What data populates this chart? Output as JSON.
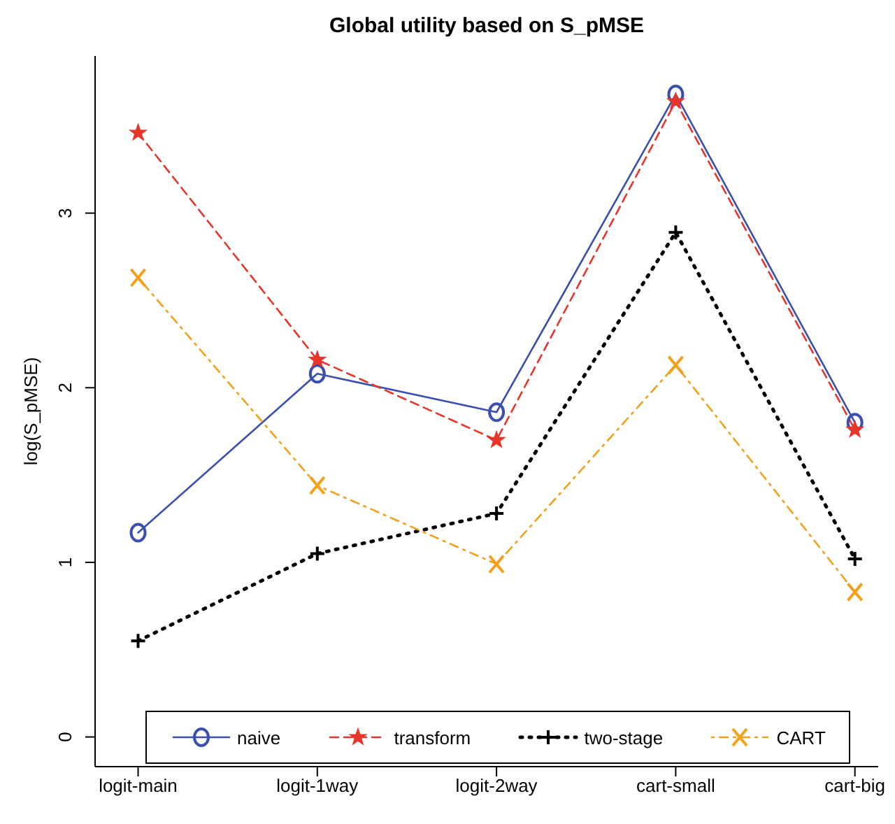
{
  "chart_data": {
    "type": "line",
    "title": "Global utility based on S_pMSE",
    "ylabel": "log(S_pMSE)",
    "categories": [
      "logit-main",
      "logit-1way",
      "logit-2way",
      "cart-small",
      "cart-big"
    ],
    "ylim": [
      -0.17,
      3.9
    ],
    "yticks": [
      0,
      1,
      2,
      3
    ],
    "legend": "bottom",
    "series": [
      {
        "name": "naive",
        "color": "#3a4fb0",
        "values": [
          1.17,
          2.08,
          1.86,
          3.68,
          1.8
        ],
        "marker": "circle",
        "line_style": "solid"
      },
      {
        "name": "transform",
        "color": "#e8352a",
        "values": [
          3.46,
          2.16,
          1.7,
          3.64,
          1.76
        ],
        "marker": "star",
        "line_style": "dashed"
      },
      {
        "name": "two-stage",
        "color": "#000000",
        "values": [
          0.55,
          1.05,
          1.28,
          2.89,
          1.02
        ],
        "marker": "plus",
        "line_style": "dotted"
      },
      {
        "name": "CART",
        "color": "#f5a01a",
        "values": [
          2.63,
          1.44,
          0.99,
          2.13,
          0.83
        ],
        "marker": "x",
        "line_style": "dashdot"
      }
    ]
  }
}
